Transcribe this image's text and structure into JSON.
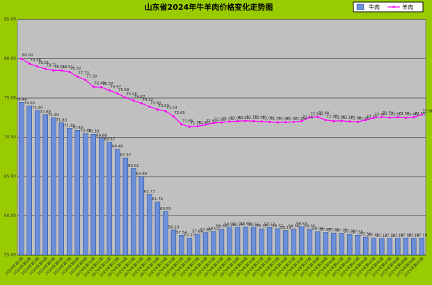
{
  "chart_data": {
    "type": "bar-line",
    "title": "山东省2024年牛羊肉价格变化走势图",
    "categories": [
      "2024年第1周",
      "2024年第2周",
      "2024年第3周",
      "2024年第4周",
      "2024年第5周",
      "2024年第6周",
      "2024年第7周",
      "2024年第8周",
      "2024年第9周",
      "2024年第10周",
      "2024年第11周",
      "2024年第12周",
      "2024年第13周",
      "2024年第14周",
      "2024年第15周",
      "2024年第16周",
      "2024年第17周",
      "2024年第18周",
      "2024年第19周",
      "2024年第20周",
      "2024年第21周",
      "2024年第22周",
      "2024年第23周",
      "2024年第24周",
      "2024年第25周",
      "2024年第26周",
      "2024年第27周",
      "2024年第28周",
      "2024年第29周",
      "2024年第30周",
      "2024年第31周",
      "2024年第32周",
      "2024年第33周",
      "2024年第34周",
      "2024年第35周",
      "2024年第36周",
      "2024年第37周",
      "2024年第38周",
      "2024年第39周",
      "2024年第40周",
      "2024年第41周",
      "2024年第42周",
      "2024年第43周",
      "2024年第44周",
      "2024年第45周",
      "2024年第46周",
      "2024年第47周",
      "2024年第48周",
      "2024年第49周",
      "2024年第50周",
      "2024年第51周"
    ],
    "series": [
      {
        "name": "牛肉",
        "kind": "bar",
        "color": "#6b8fd8",
        "values": [
          74.44,
          74.0,
          73.4,
          72.88,
          72.49,
          71.83,
          71.16,
          70.9,
          70.48,
          70.38,
          69.88,
          69.37,
          68.48,
          67.37,
          66.02,
          64.99,
          62.73,
          61.76,
          60.55,
          58.19,
          57.54,
          57.17,
          57.66,
          57.85,
          58.02,
          58.3,
          58.56,
          58.56,
          58.59,
          58.56,
          58.35,
          58.52,
          58.37,
          58.13,
          58.34,
          58.63,
          58.3,
          58.0,
          57.87,
          57.82,
          57.78,
          57.65,
          57.55,
          57.3,
          57.15,
          57.13,
          57.14,
          57.14,
          57.19,
          57.14,
          57.18
        ],
        "value_labels": [
          "74.44",
          "74.00",
          "73.40",
          "72.88",
          "72.49",
          "71.83",
          "71.16",
          "70.90",
          "70.48",
          "70.38",
          "69.88",
          "69.37",
          "68.48",
          "67.37",
          "66.02",
          "64.99",
          "62.73",
          "61.76",
          "60.55",
          "58.19",
          "57.54",
          "57.17",
          "57.66",
          "57.85",
          "58.02",
          "58.30",
          "58.56",
          "58.56",
          "58.59",
          "58.56",
          "58.35",
          "58.52",
          "58.37",
          "58.13",
          "58.34",
          "58.63",
          "58.30",
          "58.00",
          "57.87",
          "57.82",
          "57.78",
          "57.65",
          "57.55",
          "57.30",
          "57.15",
          "57.13",
          "57.14",
          "57.14",
          "57.19",
          "57.14",
          "57.18"
        ]
      },
      {
        "name": "羊肉",
        "kind": "line",
        "color": "#ff00ff",
        "values": [
          80.0,
          79.38,
          79.01,
          78.71,
          78.51,
          78.51,
          78.32,
          77.73,
          77.3,
          76.43,
          76.37,
          75.97,
          75.58,
          75.06,
          74.67,
          74.32,
          73.9,
          73.53,
          73.33,
          72.65,
          71.65,
          71.35,
          71.4,
          71.62,
          71.82,
          71.9,
          72.0,
          72.05,
          72.1,
          72.06,
          72.01,
          71.95,
          71.9,
          71.92,
          71.95,
          72.06,
          72.54,
          72.6,
          72.2,
          72.06,
          72.1,
          72.0,
          71.96,
          72.2,
          72.48,
          72.59,
          72.5,
          72.56,
          72.48,
          72.56,
          72.86
        ],
        "value_labels": [
          "80.00",
          "79.38",
          "79.01",
          "78.71",
          "78.51",
          "78.51",
          "78.32",
          "77.73",
          "77.30",
          "76.43",
          "76.37",
          "75.97",
          "75.58",
          "75.06",
          "74.67",
          "74.32",
          "73.90",
          "73.53",
          "73.33",
          "72.65",
          "71.65",
          "71.35",
          "71.40",
          "71.62",
          "71.82",
          "71.90",
          "72.00",
          "72.05",
          "72.10",
          "72.06",
          "72.01",
          "71.95",
          "71.90",
          "71.92",
          "71.95",
          "72.06",
          "72.54",
          "72.60",
          "72.20",
          "72.06",
          "72.10",
          "72.00",
          "71.96",
          "72.20",
          "72.48",
          "72.59",
          "72.50",
          "72.56",
          "72.48",
          "72.56",
          "72.86"
        ]
      }
    ],
    "ylim": [
      55,
      85
    ],
    "yticks": [
      {
        "value": 55,
        "label": "55.00"
      },
      {
        "value": 60,
        "label": "60.00"
      },
      {
        "value": 65,
        "label": "65.00"
      },
      {
        "value": 70,
        "label": "70.00"
      },
      {
        "value": 75,
        "label": "75.00"
      },
      {
        "value": 80,
        "label": "80.00"
      },
      {
        "value": 85,
        "label": "85.00"
      }
    ],
    "grid": true,
    "legend": "top-right"
  }
}
